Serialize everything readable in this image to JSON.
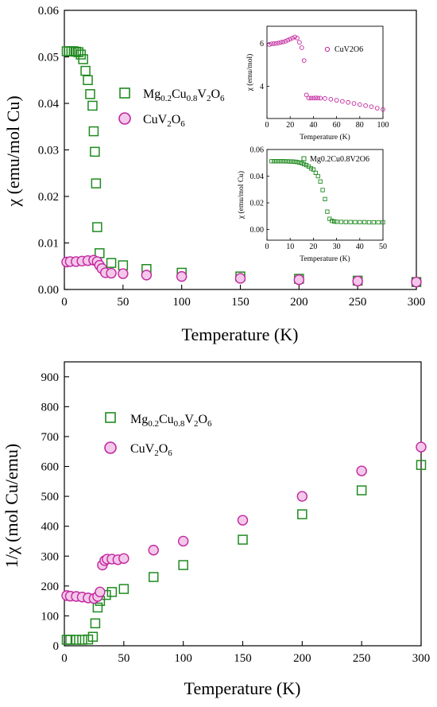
{
  "colors": {
    "green": "#1f8a1f",
    "magenta": "#c2279e",
    "magenta_fill": "#f3c8ea"
  },
  "chart_data": [
    {
      "type": "scatter",
      "xlabel": "Temperature (K)",
      "ylabel": "χ (emu/mol Cu)",
      "xlim": [
        0,
        300
      ],
      "ylim": [
        0,
        0.06
      ],
      "xticks": [
        "0",
        "50",
        "100",
        "150",
        "200",
        "250",
        "300"
      ],
      "yticks": [
        "0.00",
        "0.01",
        "0.02",
        "0.03",
        "0.04",
        "0.05",
        "0.06"
      ],
      "legend": [
        "Mg0.2Cu0.8V2O6",
        "CuV2O6"
      ],
      "series": [
        {
          "name": "Mg0.2Cu0.8V2O6",
          "marker": "square",
          "color": "green",
          "x": [
            2,
            4,
            6,
            8,
            10,
            12,
            14,
            16,
            18,
            20,
            22,
            24,
            25,
            26,
            27,
            28,
            30,
            40,
            50,
            70,
            100,
            150,
            200,
            250,
            300
          ],
          "y": [
            0.0512,
            0.0512,
            0.0512,
            0.0512,
            0.0511,
            0.051,
            0.0505,
            0.0495,
            0.047,
            0.045,
            0.042,
            0.0395,
            0.034,
            0.0296,
            0.0228,
            0.0134,
            0.0078,
            0.0057,
            0.0052,
            0.0044,
            0.0036,
            0.0028,
            0.0023,
            0.0019,
            0.0016
          ]
        },
        {
          "name": "CuV2O6",
          "marker": "circle",
          "color": "magenta",
          "x": [
            2,
            5,
            10,
            15,
            20,
            25,
            28,
            30,
            32,
            35,
            40,
            50,
            70,
            100,
            150,
            200,
            250,
            300
          ],
          "y": [
            0.0059,
            0.006,
            0.006,
            0.0061,
            0.0062,
            0.0063,
            0.006,
            0.0052,
            0.0045,
            0.0036,
            0.0035,
            0.0034,
            0.0031,
            0.0028,
            0.0024,
            0.0021,
            0.0018,
            0.0016
          ]
        }
      ]
    },
    {
      "type": "scatter",
      "inset": true,
      "xlabel": "Temperature (K)",
      "ylabel": "χ (emu/mol)",
      "xlim": [
        0,
        100
      ],
      "ylim": [
        2.5,
        6.8
      ],
      "xticks": [
        "0",
        "20",
        "40",
        "60",
        "80",
        "100"
      ],
      "yticks": [
        "4",
        "6"
      ],
      "legend": [
        "CuV2O6"
      ],
      "series": [
        {
          "name": "CuV2O6",
          "marker": "circle",
          "color": "magenta",
          "x": [
            2,
            4,
            6,
            8,
            10,
            12,
            14,
            16,
            18,
            20,
            22,
            24,
            26,
            28,
            30,
            32,
            34,
            36,
            38,
            40,
            42,
            44,
            46,
            50,
            55,
            60,
            65,
            70,
            75,
            80,
            85,
            90,
            95,
            100
          ],
          "y": [
            5.95,
            5.98,
            5.99,
            6.0,
            6.02,
            6.05,
            6.07,
            6.1,
            6.15,
            6.2,
            6.25,
            6.3,
            6.25,
            6.05,
            5.8,
            5.2,
            3.6,
            3.45,
            3.45,
            3.45,
            3.46,
            3.45,
            3.45,
            3.43,
            3.4,
            3.35,
            3.3,
            3.25,
            3.2,
            3.15,
            3.1,
            3.05,
            2.98,
            2.92
          ]
        }
      ]
    },
    {
      "type": "scatter",
      "inset": true,
      "xlabel": "Temperature (K)",
      "ylabel": "χ (emu/mol Cu)",
      "xlim": [
        0,
        50
      ],
      "ylim": [
        -0.008,
        0.06
      ],
      "xticks": [
        "0",
        "10",
        "20",
        "30",
        "40",
        "50"
      ],
      "yticks": [
        "0.00",
        "0.02",
        "0.04",
        "0.06"
      ],
      "legend": [
        "Mg0.2Cu0.8V2O6"
      ],
      "series": [
        {
          "name": "Mg0.2Cu0.8V2O6",
          "marker": "square",
          "color": "green",
          "x": [
            2,
            3,
            4,
            5,
            6,
            7,
            8,
            9,
            10,
            11,
            12,
            13,
            14,
            15,
            16,
            17,
            18,
            19,
            20,
            21,
            22,
            23,
            24,
            25,
            26,
            27,
            28,
            29,
            30,
            32,
            34,
            36,
            38,
            40,
            42,
            44,
            46,
            48,
            50
          ],
          "y": [
            0.0512,
            0.0512,
            0.0512,
            0.0512,
            0.0512,
            0.0512,
            0.0511,
            0.0511,
            0.051,
            0.051,
            0.0508,
            0.0506,
            0.0502,
            0.0498,
            0.049,
            0.0483,
            0.0472,
            0.0458,
            0.045,
            0.0425,
            0.04,
            0.036,
            0.0296,
            0.0228,
            0.0134,
            0.008,
            0.0065,
            0.006,
            0.0058,
            0.0057,
            0.0056,
            0.0056,
            0.0055,
            0.0055,
            0.0055,
            0.0054,
            0.0054,
            0.0054,
            0.0054
          ]
        }
      ]
    },
    {
      "type": "scatter",
      "xlabel": "Temperature (K)",
      "ylabel": "1/χ (mol Cu/emu)",
      "xlim": [
        0,
        300
      ],
      "ylim": [
        0,
        950
      ],
      "xticks": [
        "0",
        "50",
        "100",
        "150",
        "200",
        "250",
        "300"
      ],
      "yticks": [
        "0",
        "100",
        "200",
        "300",
        "400",
        "500",
        "600",
        "700",
        "800",
        "900"
      ],
      "legend": [
        "Mg0.2Cu0.8V2O6",
        "CuV2O6"
      ],
      "series": [
        {
          "name": "Mg0.2Cu0.8V2O6",
          "marker": "square",
          "color": "green",
          "x": [
            2,
            5,
            10,
            15,
            20,
            24,
            26,
            28,
            30,
            35,
            40,
            50,
            75,
            100,
            150,
            200,
            250,
            300
          ],
          "y": [
            20,
            20,
            20,
            20,
            21,
            30,
            75,
            128,
            150,
            170,
            180,
            190,
            230,
            270,
            355,
            440,
            520,
            605
          ]
        },
        {
          "name": "CuV2O6",
          "marker": "circle",
          "color": "magenta",
          "x": [
            2,
            5,
            10,
            15,
            20,
            25,
            28,
            30,
            32,
            34,
            36,
            40,
            45,
            50,
            75,
            100,
            150,
            200,
            250,
            300
          ],
          "y": [
            168,
            166,
            165,
            163,
            160,
            158,
            165,
            180,
            270,
            285,
            290,
            290,
            288,
            292,
            320,
            350,
            420,
            500,
            585,
            665
          ]
        }
      ]
    }
  ],
  "legend_text": {
    "top": {
      "a_base": "Mg",
      "a_s1": "0.2",
      "a_mid": "Cu",
      "a_s2": "0.8",
      "a_v": "V",
      "a_s3": "2",
      "a_o": "O",
      "a_s4": "6",
      "b_base": "CuV",
      "b_s1": "2",
      "b_o": "O",
      "b_s2": "6"
    },
    "bottom": {
      "a_base": "Mg",
      "a_s1": "0.2",
      "a_mid": "Cu",
      "a_s2": "0.8",
      "a_v": "V",
      "a_s3": "2",
      "a_o": "O",
      "a_s4": "6",
      "b_base": "CuV",
      "b_s1": "2",
      "b_o": "O",
      "b_s2": "6"
    },
    "inset1": "CuV2O6",
    "inset2": "Mg0.2Cu0.8V2O6"
  }
}
